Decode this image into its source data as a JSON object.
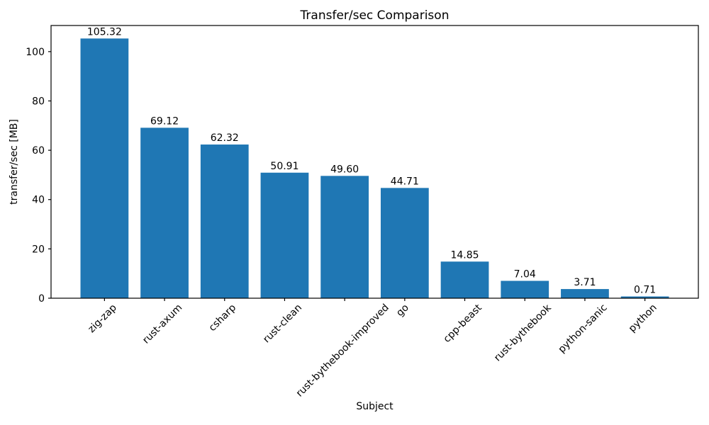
{
  "chart_data": {
    "type": "bar",
    "title": "Transfer/sec Comparison",
    "xlabel": "Subject",
    "ylabel": "transfer/sec [MB]",
    "categories": [
      "zig-zap",
      "rust-axum",
      "csharp",
      "rust-clean",
      "rust-bythebook-improved",
      "go",
      "cpp-beast",
      "rust-bythebook",
      "python-sanic",
      "python"
    ],
    "values": [
      105.32,
      69.12,
      62.32,
      50.91,
      49.6,
      44.71,
      14.85,
      7.04,
      3.71,
      0.71
    ],
    "bar_labels": [
      "105.32",
      "69.12",
      "62.32",
      "50.91",
      "49.60",
      "44.71",
      "14.85",
      "7.04",
      "3.71",
      "0.71"
    ],
    "yticks": [
      0,
      20,
      40,
      60,
      80,
      100
    ],
    "ylim": [
      0,
      110.59
    ],
    "xtick_rotation_deg": 45,
    "bar_color": "#1f77b4",
    "axis_color": "#000000",
    "background_color": "#ffffff",
    "grid": false,
    "legend": null
  }
}
